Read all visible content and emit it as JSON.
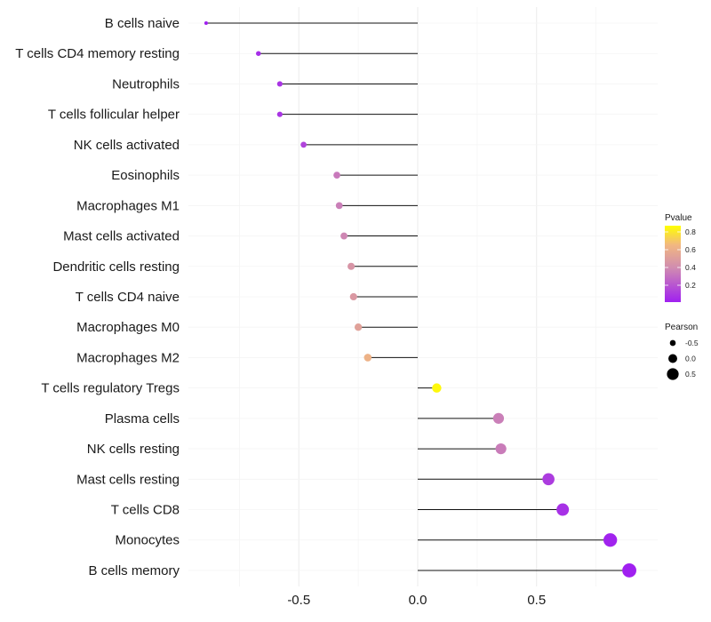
{
  "chart_data": {
    "type": "lollipop",
    "xlabel": "",
    "ylabel": "",
    "xlim": [
      -0.95,
      0.92
    ],
    "xticks": [
      -0.5,
      0.0,
      0.5
    ],
    "xtick_labels": [
      "-0.5",
      "0.0",
      "0.5"
    ],
    "categories": [
      "B cells naive",
      "T cells CD4 memory resting",
      "Neutrophils",
      "T cells follicular helper",
      "NK cells activated",
      "Eosinophils",
      "Macrophages M1",
      "Mast cells activated",
      "Dendritic cells resting",
      "T cells CD4 naive",
      "Macrophages M0",
      "Macrophages M2",
      "T cells regulatory  Tregs ",
      "Plasma cells",
      "NK cells resting",
      "Mast cells resting",
      "T cells CD8",
      "Monocytes",
      "B cells memory"
    ],
    "pearson": [
      -0.89,
      -0.67,
      -0.58,
      -0.58,
      -0.48,
      -0.34,
      -0.33,
      -0.31,
      -0.28,
      -0.27,
      -0.25,
      -0.21,
      0.08,
      0.34,
      0.35,
      0.55,
      0.61,
      0.81,
      0.89
    ],
    "pvalue": [
      0.01,
      0.06,
      0.08,
      0.08,
      0.14,
      0.33,
      0.35,
      0.38,
      0.45,
      0.47,
      0.52,
      0.62,
      0.85,
      0.35,
      0.34,
      0.11,
      0.07,
      0.02,
      0.01
    ],
    "legend_pvalue": {
      "title": "Pvalue",
      "ticks": [
        0.2,
        0.4,
        0.6,
        0.8
      ],
      "tick_labels": [
        "0.2",
        "0.4",
        "0.6",
        "0.8"
      ],
      "range": [
        0.01,
        0.87
      ],
      "color_low": "#a020f0",
      "color_mid": "#e0a0a0",
      "color_high": "#ffff00"
    },
    "legend_pearson": {
      "title": "Pearson",
      "values": [
        -0.5,
        0.0,
        0.5
      ],
      "labels": [
        "-0.5",
        "0.0",
        "0.5"
      ]
    }
  }
}
